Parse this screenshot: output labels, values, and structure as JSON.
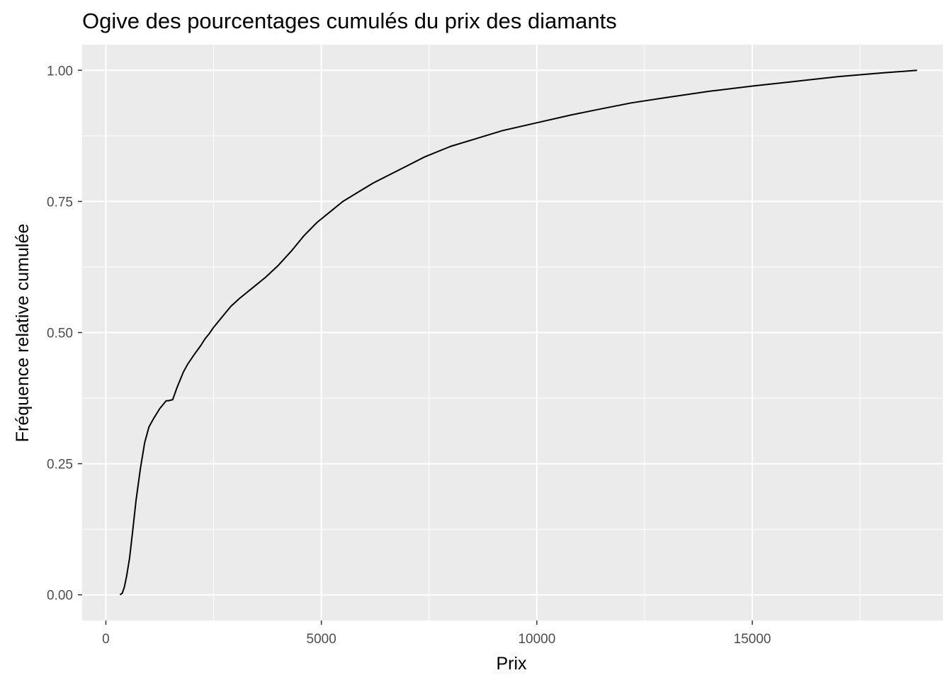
{
  "chart_data": {
    "type": "line",
    "title": "Ogive des pourcentages cumulés du prix des diamants",
    "xlabel": "Prix",
    "ylabel": "Fréquence relative cumulée",
    "xlim": [
      -550,
      19420
    ],
    "ylim": [
      -0.049,
      1.049
    ],
    "x_ticks": [
      0,
      5000,
      10000,
      15000
    ],
    "x_tick_labels": [
      "0",
      "5000",
      "10000",
      "15000"
    ],
    "x_minor_ticks": [
      2500,
      7500,
      12500,
      17500
    ],
    "y_ticks": [
      0,
      0.25,
      0.5,
      0.75,
      1.0
    ],
    "y_tick_labels": [
      "0.00",
      "0.25",
      "0.50",
      "0.75",
      "1.00"
    ],
    "y_minor_ticks": [
      0.125,
      0.375,
      0.625,
      0.875
    ],
    "grid": true,
    "colors": {
      "panel": "#ebebeb",
      "grid": "#ffffff",
      "line": "#000000",
      "tick_label": "#4d4d4d"
    },
    "series": [
      {
        "name": "ogive",
        "x": [
          326,
          380,
          430,
          480,
          550,
          620,
          700,
          800,
          900,
          1000,
          1100,
          1250,
          1400,
          1450,
          1550,
          1650,
          1800,
          1900,
          2050,
          2200,
          2300,
          2400,
          2500,
          2700,
          2900,
          3100,
          3400,
          3700,
          4000,
          4300,
          4600,
          4900,
          5200,
          5500,
          5800,
          6200,
          6800,
          7400,
          8000,
          8600,
          9200,
          10000,
          10800,
          11400,
          12200,
          13000,
          14000,
          15000,
          16000,
          17000,
          18000,
          18823
        ],
        "values": [
          0,
          0.003,
          0.015,
          0.035,
          0.07,
          0.12,
          0.18,
          0.24,
          0.29,
          0.32,
          0.335,
          0.355,
          0.37,
          0.37,
          0.372,
          0.395,
          0.425,
          0.44,
          0.458,
          0.475,
          0.488,
          0.498,
          0.51,
          0.53,
          0.55,
          0.565,
          0.585,
          0.605,
          0.628,
          0.655,
          0.685,
          0.71,
          0.73,
          0.75,
          0.765,
          0.785,
          0.81,
          0.835,
          0.855,
          0.87,
          0.885,
          0.9,
          0.915,
          0.925,
          0.938,
          0.948,
          0.96,
          0.97,
          0.979,
          0.988,
          0.995,
          1.0
        ]
      }
    ]
  }
}
